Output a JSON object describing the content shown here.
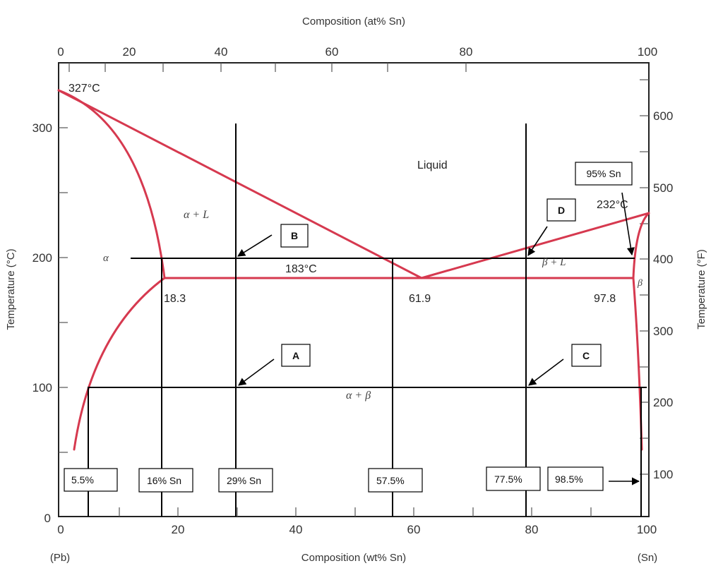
{
  "axes": {
    "top_title": "Composition (at% Sn)",
    "bottom_title": "Composition (wt% Sn)",
    "left_title": "Temperature (°C)",
    "right_title": "Temperature (°F)",
    "top_ticks": [
      "0",
      "20",
      "40",
      "60",
      "80",
      "100"
    ],
    "bottom_ticks": [
      "0",
      "20",
      "40",
      "60",
      "80",
      "100"
    ],
    "left_ticks": [
      "300",
      "200",
      "100",
      "0"
    ],
    "right_ticks": [
      "600",
      "500",
      "400",
      "300",
      "200",
      "100"
    ],
    "left_end": "(Pb)",
    "right_end": "(Sn)"
  },
  "labels": {
    "pb_melt": "327°C",
    "sn_melt": "232°C",
    "eutectic_temp": "183°C",
    "liquid": "Liquid",
    "alpha": "α",
    "alpha_l": "α + L",
    "beta_l": "β + L",
    "beta": "β",
    "alpha_beta": "α + β",
    "c_alpha": "18.3",
    "c_eut": "61.9",
    "c_beta": "97.8"
  },
  "boxes": {
    "A": "A",
    "B": "B",
    "C": "C",
    "D": "D",
    "sn95": "95% Sn",
    "c5_5": "5.5%",
    "c16": "16% Sn",
    "c29": "29% Sn",
    "c57_5": "57.5%",
    "c77_5": "77.5%",
    "c98_5": "98.5%"
  },
  "colors": {
    "phase_line": "#d6394f",
    "guide_line": "#000000",
    "frame": "#222222"
  }
}
